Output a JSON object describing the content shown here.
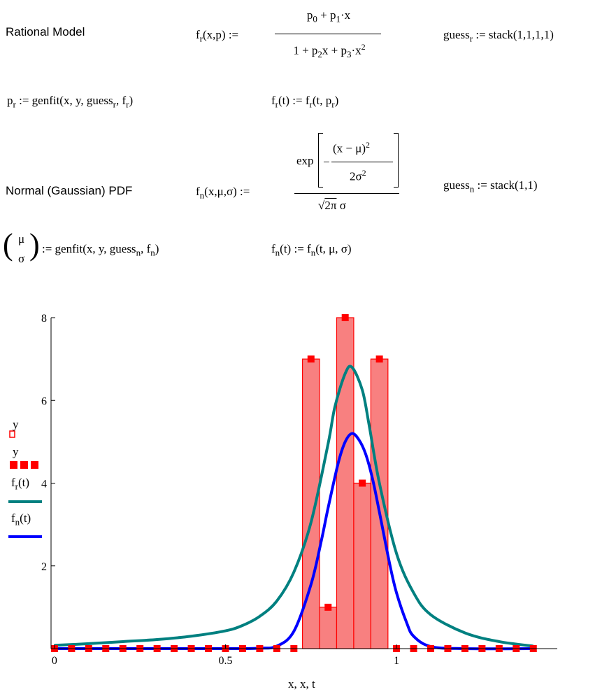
{
  "worksheet": {
    "rational": {
      "heading": "Rational Model",
      "def_lhs": "f_r(x,p) :=",
      "numerator": "p_0 + p_1·x",
      "denominator": "1 + p_2 x + p_3·x^2",
      "guess": "guess_r := stack(1,1,1,1)",
      "fit": "p_r := genfit(x, y, guess_r, f_r)",
      "eval": "f_r(t) := f_r(t, p_r)"
    },
    "normal": {
      "heading": "Normal (Gaussian) PDF",
      "def_lhs": "f_n(x,μ,σ) :=",
      "numerator": "exp[ -(x - μ)^2 / 2σ^2 ]",
      "denominator": "√2π σ",
      "guess": "guess_n := stack(1,1)",
      "fit": "(μ σ) := genfit(x, y, guess_n, f_n)",
      "eval": "f_n(t) := f_n(t, μ, σ)"
    }
  },
  "colors": {
    "bar_fill": "#f88080",
    "bar_edge": "#ff0000",
    "points": "#ff0000",
    "rational_curve": "#008080",
    "normal_curve": "#0000ff"
  },
  "chart_data": {
    "type": "bar",
    "xlabel": "x, x, t",
    "ylabel": "",
    "xlim": [
      -0.01,
      1.47
    ],
    "ylim": [
      0,
      8
    ],
    "x_ticks": [
      "0",
      "0.5",
      "1"
    ],
    "y_ticks": [
      "2",
      "4",
      "6",
      "8"
    ],
    "legend": [
      "y",
      "y",
      "f_r(t)",
      "f_n(t)"
    ],
    "legend_placement": "left",
    "bins": {
      "x": [
        0.0,
        0.05,
        0.1,
        0.15,
        0.2,
        0.25,
        0.3,
        0.35,
        0.4,
        0.45,
        0.5,
        0.55,
        0.6,
        0.65,
        0.7,
        0.75,
        0.8,
        0.85,
        0.9,
        0.95,
        1.0,
        1.05,
        1.1,
        1.15,
        1.2,
        1.25,
        1.3,
        1.35,
        1.4
      ],
      "y": [
        0,
        0,
        0,
        0,
        0,
        0,
        0,
        0,
        0,
        0,
        0,
        0,
        0,
        0,
        0,
        7,
        1,
        8,
        4,
        7,
        0,
        0,
        0,
        0,
        0,
        0,
        0,
        0,
        0
      ]
    },
    "series": [
      {
        "name": "f_r(t)",
        "kind": "curve",
        "x": [
          0.0,
          0.1,
          0.2,
          0.3,
          0.4,
          0.5,
          0.55,
          0.6,
          0.65,
          0.7,
          0.75,
          0.8,
          0.82,
          0.85,
          0.87,
          0.9,
          0.92,
          0.95,
          1.0,
          1.05,
          1.1,
          1.2,
          1.3,
          1.4
        ],
        "y": [
          0.08,
          0.12,
          0.17,
          0.22,
          0.3,
          0.43,
          0.56,
          0.78,
          1.15,
          1.85,
          3.05,
          4.95,
          5.85,
          6.65,
          6.8,
          6.25,
          5.4,
          4.0,
          2.3,
          1.35,
          0.82,
          0.38,
          0.17,
          0.06
        ]
      },
      {
        "name": "f_n(t)",
        "kind": "curve",
        "x": [
          0.0,
          0.5,
          0.6,
          0.65,
          0.7,
          0.75,
          0.78,
          0.8,
          0.83,
          0.85,
          0.87,
          0.89,
          0.91,
          0.93,
          0.95,
          0.98,
          1.0,
          1.03,
          1.05,
          1.1,
          1.2,
          1.4
        ],
        "y": [
          0.0,
          0.0,
          0.01,
          0.06,
          0.42,
          1.55,
          2.6,
          3.4,
          4.5,
          5.0,
          5.2,
          5.05,
          4.7,
          4.1,
          3.3,
          2.05,
          1.35,
          0.62,
          0.3,
          0.05,
          0.0,
          0.0
        ]
      }
    ]
  }
}
